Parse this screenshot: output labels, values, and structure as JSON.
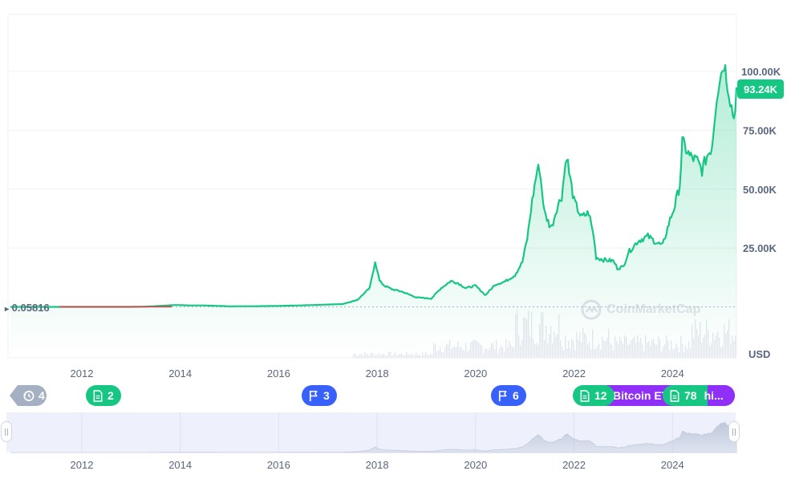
{
  "chart_data": {
    "type": "area",
    "currency_label": "USD",
    "current_price_label": "93.24K",
    "start_price_label": "0.05816",
    "y_ticks": [
      {
        "value": 25000,
        "label": "25.00K"
      },
      {
        "value": 50000,
        "label": "50.00K"
      },
      {
        "value": 75000,
        "label": "75.00K"
      },
      {
        "value": 100000,
        "label": "100.00K"
      }
    ],
    "x_ticks": [
      "2012",
      "2014",
      "2016",
      "2018",
      "2020",
      "2022",
      "2024"
    ],
    "ylim": [
      0,
      125000
    ],
    "xlim": [
      2010.55,
      2025.3
    ],
    "watermark": "CoinMarketCap",
    "series": [
      {
        "x": [
          2010.55,
          2011.0,
          2011.45,
          2012.0,
          2012.5,
          2013.0,
          2013.3,
          2013.9,
          2014.2,
          2014.5,
          2015.0,
          2015.5,
          2016.0,
          2016.5,
          2017.0,
          2017.3,
          2017.6,
          2017.85,
          2017.96,
          2018.05,
          2018.15,
          2018.3,
          2018.5,
          2018.8,
          2018.95,
          2019.1,
          2019.3,
          2019.5,
          2019.65,
          2019.8,
          2020.0,
          2020.2,
          2020.4,
          2020.6,
          2020.8,
          2020.95,
          2021.05,
          2021.15,
          2021.25,
          2021.3,
          2021.4,
          2021.5,
          2021.55,
          2021.65,
          2021.75,
          2021.85,
          2021.9,
          2022.0,
          2022.15,
          2022.3,
          2022.4,
          2022.45,
          2022.6,
          2022.8,
          2022.88,
          2023.0,
          2023.1,
          2023.3,
          2023.5,
          2023.7,
          2023.8,
          2023.95,
          2024.05,
          2024.15,
          2024.2,
          2024.35,
          2024.5,
          2024.6,
          2024.7,
          2024.8,
          2024.9,
          2024.96,
          2025.05,
          2025.12,
          2025.2,
          2025.25,
          2025.3
        ],
        "y": [
          0.06,
          0.3,
          15,
          5,
          10,
          13,
          100,
          800,
          600,
          600,
          250,
          280,
          420,
          650,
          1000,
          1200,
          3000,
          8000,
          19500,
          11000,
          9000,
          7500,
          6500,
          4000,
          3800,
          3500,
          8000,
          11000,
          10000,
          8000,
          9000,
          5000,
          9500,
          10800,
          13500,
          19000,
          29000,
          45000,
          58000,
          59000,
          40000,
          35000,
          34000,
          42000,
          47000,
          65000,
          57000,
          45000,
          38000,
          40000,
          30000,
          21000,
          20000,
          19500,
          16500,
          17000,
          23000,
          28000,
          30000,
          27000,
          26000,
          37000,
          43000,
          52000,
          70000,
          64000,
          62000,
          58000,
          64000,
          68000,
          90000,
          97000,
          104000,
          95000,
          85000,
          80000,
          93240
        ]
      }
    ]
  },
  "events": [
    {
      "count": "4",
      "label": ""
    },
    {
      "count": "2",
      "label": ""
    },
    {
      "count": "3",
      "label": ""
    },
    {
      "count": "6",
      "label": ""
    },
    {
      "count": "12",
      "label": "Bitcoin ET"
    },
    {
      "count": "78",
      "label": "hi..."
    }
  ],
  "colors": {
    "up": "#16c784",
    "down": "#ea3943",
    "event_blue": "#3861fb",
    "event_purple": "#8f2ff7",
    "event_gray": "#a6b0c3"
  }
}
